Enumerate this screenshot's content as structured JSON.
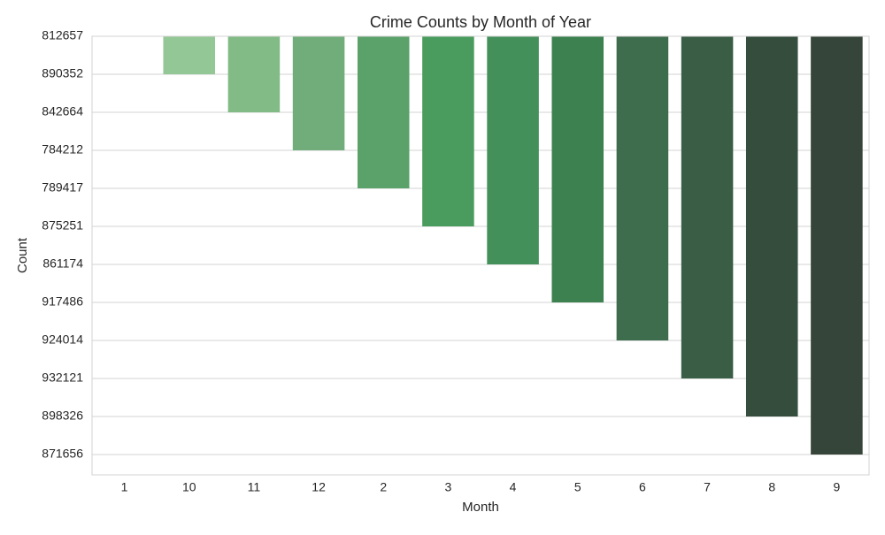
{
  "chart_data": {
    "type": "bar",
    "title": "Crime Counts by Month of Year",
    "xlabel": "Month",
    "ylabel": "Count",
    "categories": [
      "1",
      "10",
      "11",
      "12",
      "2",
      "3",
      "4",
      "5",
      "6",
      "7",
      "8",
      "9"
    ],
    "values": [
      812657,
      890352,
      842664,
      784212,
      789417,
      875251,
      861174,
      917486,
      924014,
      932121,
      898326,
      871656
    ],
    "colors": [
      "#a5d4a4",
      "#93c795",
      "#82bb86",
      "#70ad7a",
      "#5ba26a",
      "#4a9c5e",
      "#44905a",
      "#3d8150",
      "#3e6d4d",
      "#3a5e45",
      "#344d3c",
      "#364539"
    ],
    "y_axis_categorical": true,
    "y_inverted": true,
    "grid": true
  }
}
